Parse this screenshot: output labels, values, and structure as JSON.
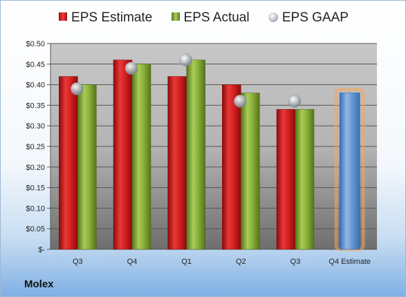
{
  "company": "Molex",
  "legend": {
    "estimate": "EPS Estimate",
    "actual": "EPS Actual",
    "gaap": "EPS GAAP"
  },
  "colors": {
    "estimate": "#d62020",
    "actual": "#8ab03a",
    "gaap": "#a9afb8",
    "forecast": "#5b8fd0",
    "forecast_glow": "#f5a65b"
  },
  "chart_data": {
    "type": "bar",
    "categories": [
      "Q3",
      "Q4",
      "Q1",
      "Q2",
      "Q3",
      "Q4 Estimate"
    ],
    "series": [
      {
        "name": "EPS Estimate",
        "values": [
          0.42,
          0.46,
          0.42,
          0.4,
          0.34,
          null
        ]
      },
      {
        "name": "EPS Actual",
        "values": [
          0.4,
          0.45,
          0.46,
          0.38,
          0.34,
          null
        ]
      },
      {
        "name": "EPS GAAP",
        "type": "scatter",
        "values": [
          0.39,
          0.44,
          0.46,
          0.36,
          0.36,
          null
        ]
      }
    ],
    "forecast": {
      "category": "Q4 Estimate",
      "value": 0.38
    },
    "y_ticks": [
      0,
      0.05,
      0.1,
      0.15,
      0.2,
      0.25,
      0.3,
      0.35,
      0.4,
      0.45,
      0.5
    ],
    "y_tick_labels": [
      "$-",
      "$0.05",
      "$0.10",
      "$0.15",
      "$0.20",
      "$0.25",
      "$0.30",
      "$0.35",
      "$0.40",
      "$0.45",
      "$0.50"
    ],
    "ylim": [
      0,
      0.5
    ],
    "grid": true,
    "legend_position": "top"
  }
}
